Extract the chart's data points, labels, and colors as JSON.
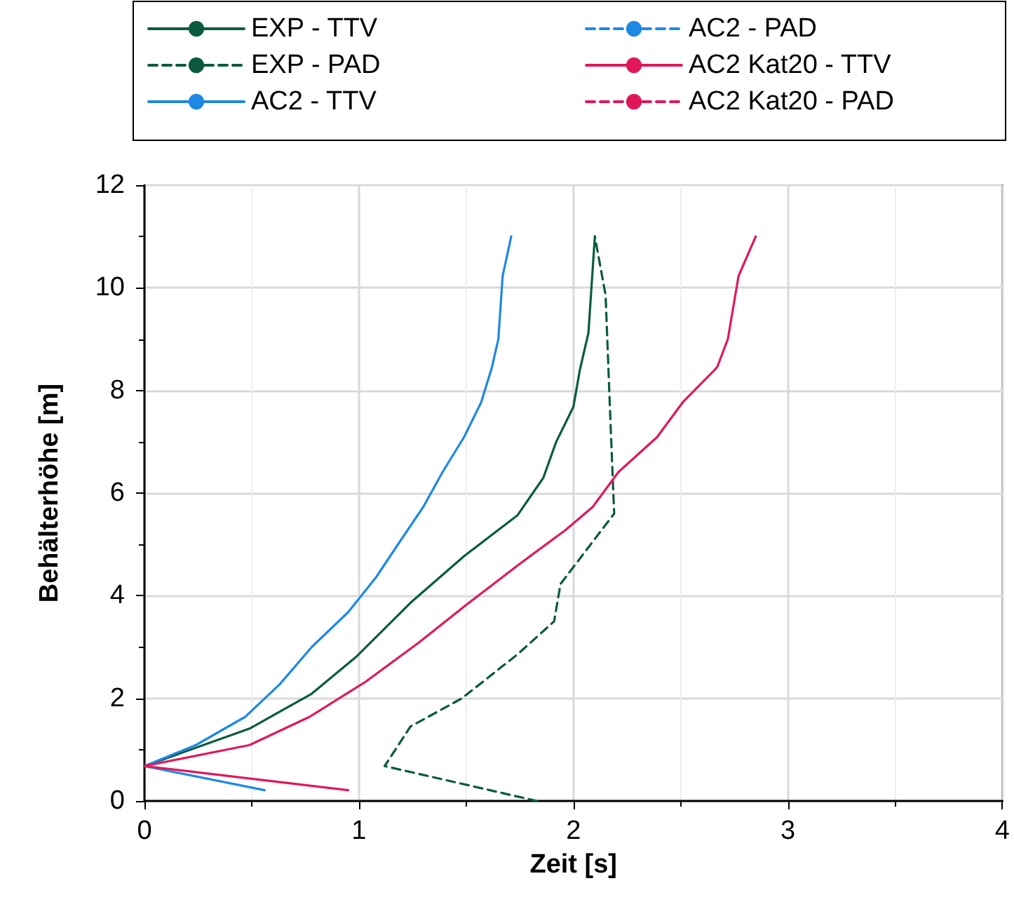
{
  "chart_data": {
    "type": "line",
    "xlabel": "Zeit [s]",
    "ylabel": "Behälterhöhe [m]",
    "xlim": [
      0,
      4
    ],
    "xticks": [
      0,
      1,
      2,
      3,
      4
    ],
    "ylim": [
      0,
      12
    ],
    "yticks": [
      0,
      2,
      4,
      6,
      8,
      10,
      12
    ],
    "grid": true,
    "legend": "top",
    "marker": "none",
    "series": [
      {
        "name": "EXP - TTV",
        "color": "#0b5a3f",
        "line_style": "solid",
        "x": [
          0,
          0.49,
          0.78,
          0.99,
          1.24,
          1.49,
          1.74,
          1.86,
          1.92,
          2.0,
          2.03,
          2.07,
          2.1
        ],
        "values": [
          0.68,
          1.41,
          2.09,
          2.82,
          3.86,
          4.77,
          5.57,
          6.3,
          7.0,
          7.68,
          8.4,
          9.12,
          11.0
        ]
      },
      {
        "name": "EXP - PAD",
        "color": "#0b5a3f",
        "line_style": "dashed",
        "x": [
          1.83,
          1.12,
          1.24,
          1.48,
          1.74,
          1.91,
          1.94,
          2.19,
          2.17,
          2.15,
          2.1
        ],
        "values": [
          0,
          0.68,
          1.45,
          2.0,
          2.86,
          3.5,
          4.23,
          5.6,
          7.68,
          9.86,
          11.0
        ]
      },
      {
        "name": "AC2 - TTV",
        "color": "#1e88e5",
        "line_style": "solid",
        "x": [
          0.56,
          0,
          0.24,
          0.47,
          0.63,
          0.78,
          0.95,
          1.08,
          1.19,
          1.3,
          1.39,
          1.49,
          1.57,
          1.62,
          1.65,
          1.67,
          1.71
        ],
        "values": [
          0.21,
          0.68,
          1.09,
          1.64,
          2.27,
          3.0,
          3.68,
          4.36,
          5.05,
          5.73,
          6.41,
          7.09,
          7.77,
          8.45,
          9.0,
          10.23,
          11.0
        ]
      },
      {
        "name": "AC2 - PAD",
        "color": "#1e88e5",
        "line_style": "dashed"
      },
      {
        "name": "AC2 Kat20 - TTV",
        "color": "#e0185a",
        "line_style": "solid",
        "x": [
          0.95,
          0,
          0.49,
          0.77,
          1.03,
          1.28,
          1.5,
          1.74,
          1.96,
          2.09,
          2.21,
          2.39,
          2.51,
          2.67,
          2.72,
          2.77,
          2.85
        ],
        "values": [
          0.21,
          0.68,
          1.09,
          1.64,
          2.32,
          3.09,
          3.82,
          4.59,
          5.27,
          5.73,
          6.41,
          7.09,
          7.77,
          8.45,
          9.0,
          10.23,
          11.0
        ]
      },
      {
        "name": "AC2 Kat20 - PAD",
        "color": "#e0185a",
        "line_style": "dashed"
      }
    ]
  }
}
